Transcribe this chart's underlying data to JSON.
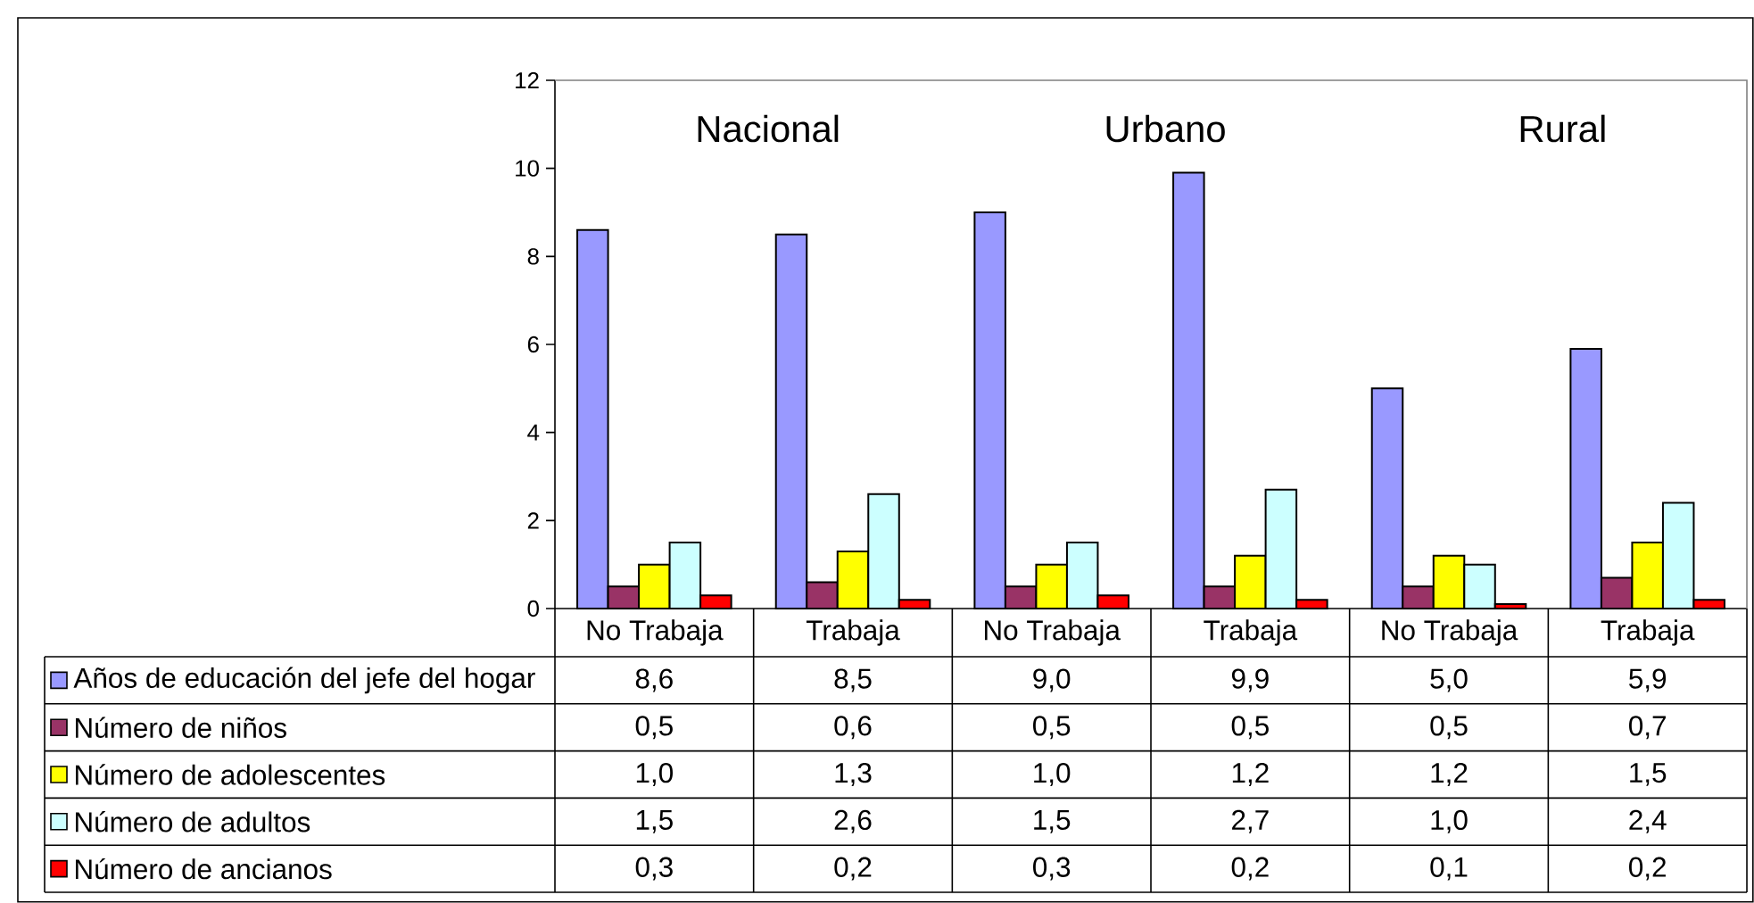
{
  "chart_data": {
    "type": "bar",
    "categories": [
      "No Trabaja",
      "Trabaja",
      "No Trabaja",
      "Trabaja",
      "No Trabaja",
      "Trabaja"
    ],
    "series": [
      {
        "name": "Años de educación del jefe del hogar",
        "color": "#9999ff",
        "values": [
          8.6,
          8.5,
          9.0,
          9.9,
          5.0,
          5.9
        ],
        "value_labels": [
          "8,6",
          "8,5",
          "9,0",
          "9,9",
          "5,0",
          "5,9"
        ]
      },
      {
        "name": "Número de niños",
        "color": "#993366",
        "values": [
          0.5,
          0.6,
          0.5,
          0.5,
          0.5,
          0.7
        ],
        "value_labels": [
          "0,5",
          "0,6",
          "0,5",
          "0,5",
          "0,5",
          "0,7"
        ]
      },
      {
        "name": "Número de adolescentes",
        "color": "#ffff00",
        "values": [
          1.0,
          1.3,
          1.0,
          1.2,
          1.2,
          1.5
        ],
        "value_labels": [
          "1,0",
          "1,3",
          "1,0",
          "1,2",
          "1,2",
          "1,5"
        ]
      },
      {
        "name": "Número de adultos",
        "color": "#ccffff",
        "values": [
          1.5,
          2.6,
          1.5,
          2.7,
          1.0,
          2.4
        ],
        "value_labels": [
          "1,5",
          "2,6",
          "1,5",
          "2,7",
          "1,0",
          "2,4"
        ]
      },
      {
        "name": "Número de ancianos",
        "color": "#ff0000",
        "values": [
          0.3,
          0.2,
          0.3,
          0.2,
          0.1,
          0.2
        ],
        "value_labels": [
          "0,3",
          "0,2",
          "0,3",
          "0,2",
          "0,1",
          "0,2"
        ]
      }
    ],
    "ylim": [
      0,
      12
    ],
    "yticks": [
      0,
      2,
      4,
      6,
      8,
      10,
      12
    ],
    "legend": "bottom",
    "annotations": [
      "Nacional",
      "Urbano",
      "Rural"
    ]
  }
}
